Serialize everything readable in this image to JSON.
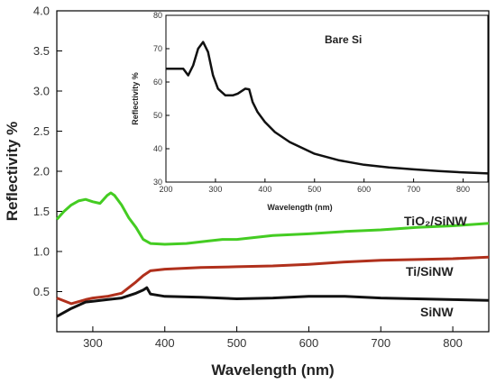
{
  "chart_data": [
    {
      "type": "line",
      "xlabel": "Wavelength (nm)",
      "ylabel": "Reflectivity %",
      "xlim": [
        250,
        850
      ],
      "ylim": [
        0.0,
        4.0
      ],
      "x_ticks": [
        300,
        400,
        500,
        600,
        700,
        800
      ],
      "y_ticks": [
        "0.5",
        "1.0",
        "1.5",
        "2.0",
        "2.5",
        "3.0",
        "3.5",
        "4.0"
      ],
      "grid": false,
      "series": [
        {
          "name": "TiO₂/SiNW",
          "color": "#44cc22",
          "x": [
            250,
            260,
            270,
            280,
            290,
            300,
            310,
            320,
            325,
            330,
            340,
            350,
            360,
            370,
            380,
            400,
            430,
            460,
            480,
            500,
            550,
            600,
            650,
            700,
            750,
            800,
            850
          ],
          "y": [
            1.4,
            1.5,
            1.58,
            1.63,
            1.65,
            1.62,
            1.6,
            1.7,
            1.73,
            1.7,
            1.58,
            1.42,
            1.3,
            1.15,
            1.1,
            1.09,
            1.1,
            1.13,
            1.15,
            1.15,
            1.2,
            1.22,
            1.25,
            1.27,
            1.3,
            1.32,
            1.35
          ]
        },
        {
          "name": "Ti/SiNW",
          "color": "#b0301c",
          "x": [
            250,
            270,
            290,
            300,
            320,
            340,
            350,
            360,
            370,
            380,
            400,
            450,
            500,
            550,
            600,
            650,
            700,
            750,
            800,
            850
          ],
          "y": [
            0.42,
            0.35,
            0.4,
            0.42,
            0.44,
            0.48,
            0.55,
            0.62,
            0.7,
            0.76,
            0.78,
            0.8,
            0.81,
            0.82,
            0.84,
            0.87,
            0.89,
            0.9,
            0.91,
            0.93
          ]
        },
        {
          "name": "SiNW",
          "color": "#111111",
          "x": [
            250,
            270,
            290,
            300,
            320,
            340,
            360,
            370,
            375,
            380,
            400,
            450,
            500,
            550,
            600,
            650,
            700,
            750,
            800,
            850
          ],
          "y": [
            0.19,
            0.29,
            0.37,
            0.38,
            0.4,
            0.42,
            0.48,
            0.52,
            0.55,
            0.47,
            0.44,
            0.43,
            0.41,
            0.42,
            0.44,
            0.44,
            0.42,
            0.41,
            0.4,
            0.39
          ]
        }
      ]
    },
    {
      "type": "line",
      "title": "Bare Si",
      "xlabel": "Wavelength (nm)",
      "ylabel": "Reflectivity %",
      "xlim": [
        200,
        850
      ],
      "ylim": [
        30,
        80
      ],
      "x_ticks": [
        200,
        300,
        400,
        500,
        600,
        700,
        800
      ],
      "y_ticks": [
        30,
        40,
        50,
        60,
        70,
        80
      ],
      "grid": false,
      "series": [
        {
          "name": "Bare Si",
          "color": "#111111",
          "x": [
            200,
            220,
            235,
            245,
            255,
            265,
            275,
            285,
            295,
            305,
            320,
            335,
            345,
            360,
            368,
            375,
            385,
            400,
            420,
            450,
            500,
            550,
            600,
            650,
            700,
            750,
            800,
            850
          ],
          "y": [
            64,
            64,
            64,
            62,
            65,
            70,
            72,
            69,
            62,
            58,
            56,
            56,
            56.5,
            58,
            57.8,
            54,
            51,
            48,
            45,
            42,
            38.5,
            36.5,
            35.2,
            34.4,
            33.8,
            33.3,
            32.9,
            32.6
          ]
        }
      ]
    }
  ]
}
